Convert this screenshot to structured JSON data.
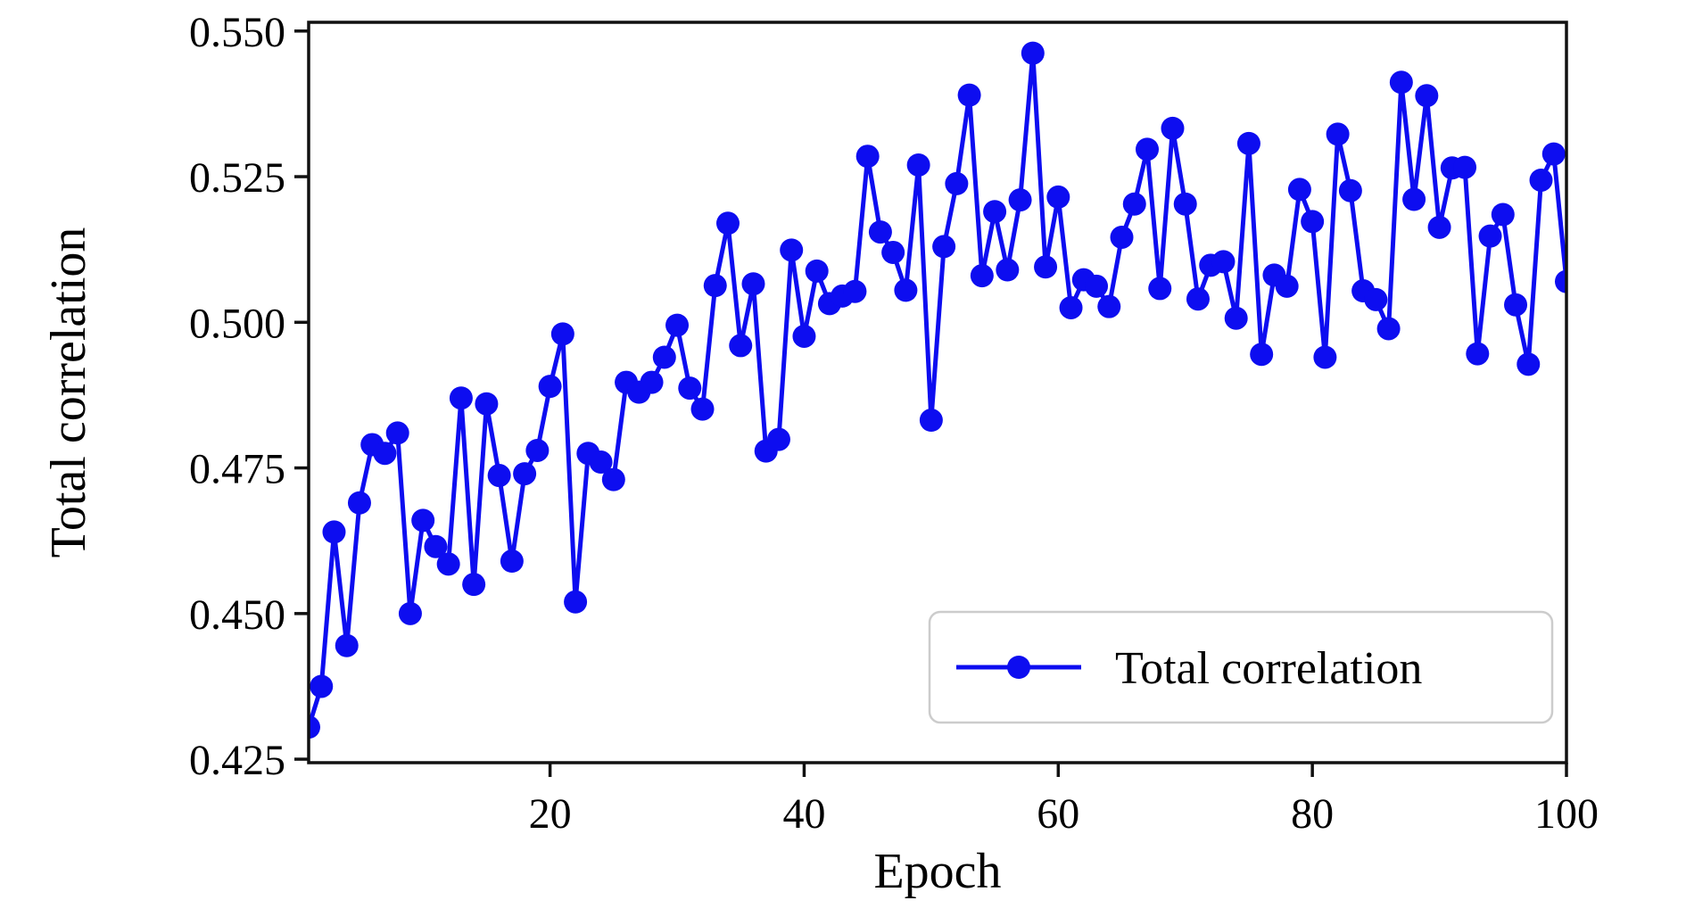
{
  "chart_data": {
    "type": "line",
    "title": "",
    "xlabel": "Epoch",
    "ylabel": "Total correlation",
    "legend": {
      "position": "lower right",
      "entries": [
        "Total correlation"
      ]
    },
    "grid": false,
    "xlim": [
      1,
      100
    ],
    "ylim": [
      0.4244,
      0.5515
    ],
    "xticks": {
      "values": [
        20,
        40,
        60,
        80,
        100
      ],
      "labels": [
        "20",
        "40",
        "60",
        "80",
        "100"
      ]
    },
    "yticks": {
      "values": [
        0.425,
        0.45,
        0.475,
        0.5,
        0.525,
        0.55
      ],
      "labels": [
        "0.425",
        "0.450",
        "0.475",
        "0.500",
        "0.525",
        "0.550"
      ]
    },
    "series": [
      {
        "name": "Total correlation",
        "marker": "circle",
        "color": "#0d0df0",
        "x": [
          1,
          2,
          3,
          4,
          5,
          6,
          7,
          8,
          9,
          10,
          11,
          12,
          13,
          14,
          15,
          16,
          17,
          18,
          19,
          20,
          21,
          22,
          23,
          24,
          25,
          26,
          27,
          28,
          29,
          30,
          31,
          32,
          33,
          34,
          35,
          36,
          37,
          38,
          39,
          40,
          41,
          42,
          43,
          44,
          45,
          46,
          47,
          48,
          49,
          50,
          51,
          52,
          53,
          54,
          55,
          56,
          57,
          58,
          59,
          60,
          61,
          62,
          63,
          64,
          65,
          66,
          67,
          68,
          69,
          70,
          71,
          72,
          73,
          74,
          75,
          76,
          77,
          78,
          79,
          80,
          81,
          82,
          83,
          84,
          85,
          86,
          87,
          88,
          89,
          90,
          91,
          92,
          93,
          94,
          95,
          96,
          97,
          98,
          99,
          100
        ],
        "values": [
          0.4305,
          0.4375,
          0.464,
          0.4445,
          0.469,
          0.479,
          0.4775,
          0.481,
          0.45,
          0.466,
          0.4615,
          0.4585,
          0.487,
          0.455,
          0.486,
          0.4737,
          0.459,
          0.474,
          0.478,
          0.489,
          0.498,
          0.452,
          0.4775,
          0.476,
          0.473,
          0.4897,
          0.488,
          0.4897,
          0.494,
          0.4995,
          0.4887,
          0.4851,
          0.5063,
          0.517,
          0.496,
          0.5066,
          0.4779,
          0.4799,
          0.5124,
          0.4976,
          0.5088,
          0.5032,
          0.5045,
          0.5053,
          0.5285,
          0.5155,
          0.512,
          0.5055,
          0.527,
          0.4832,
          0.513,
          0.5238,
          0.539,
          0.508,
          0.519,
          0.509,
          0.521,
          0.5462,
          0.5095,
          0.5215,
          0.5025,
          0.5073,
          0.5062,
          0.5027,
          0.5146,
          0.5203,
          0.5297,
          0.5058,
          0.5333,
          0.5203,
          0.504,
          0.5098,
          0.5104,
          0.5007,
          0.5307,
          0.4945,
          0.5081,
          0.5062,
          0.5228,
          0.5173,
          0.494,
          0.5323,
          0.5226,
          0.5054,
          0.5039,
          0.4989,
          0.5412,
          0.5211,
          0.5389,
          0.5163,
          0.5265,
          0.5266,
          0.4946,
          0.5148,
          0.5185,
          0.503,
          0.4928,
          0.5244,
          0.5289,
          0.507
        ]
      }
    ],
    "colors": {
      "line": "#0d0df0",
      "axes": "#111111",
      "legend_border": "#cccccc",
      "background": "#ffffff"
    }
  }
}
